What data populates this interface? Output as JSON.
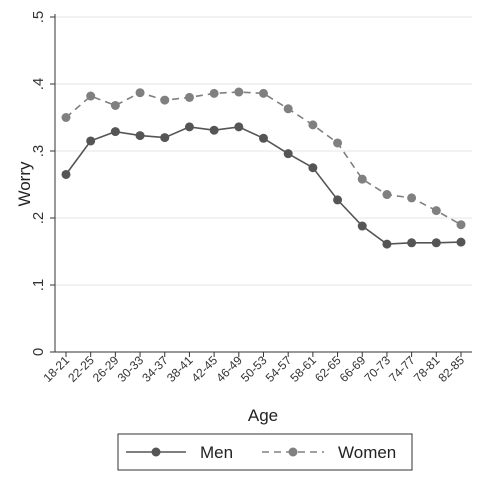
{
  "chart_data": {
    "type": "line",
    "xlabel": "Age",
    "ylabel": "Worry",
    "ylim": [
      0,
      0.5
    ],
    "yticks": [
      {
        "value": 0,
        "label": "0"
      },
      {
        "value": 0.1,
        "label": ".1"
      },
      {
        "value": 0.2,
        "label": ".2"
      },
      {
        "value": 0.3,
        "label": ".3"
      },
      {
        "value": 0.4,
        "label": ".4"
      },
      {
        "value": 0.5,
        "label": ".5"
      }
    ],
    "grid": true,
    "legend_position": "bottom",
    "categories": [
      "18-21",
      "22-25",
      "26-29",
      "30-33",
      "34-37",
      "38-41",
      "42-45",
      "46-49",
      "50-53",
      "54-57",
      "58-61",
      "62-65",
      "66-69",
      "70-73",
      "74-77",
      "78-81",
      "82-85"
    ],
    "series": [
      {
        "name": "Men",
        "line_style": "solid",
        "color": "#555555",
        "values": [
          0.265,
          0.315,
          0.329,
          0.323,
          0.32,
          0.336,
          0.331,
          0.336,
          0.319,
          0.296,
          0.275,
          0.227,
          0.188,
          0.161,
          0.163,
          0.163,
          0.164
        ]
      },
      {
        "name": "Women",
        "line_style": "dashed",
        "color": "#808080",
        "values": [
          0.35,
          0.382,
          0.368,
          0.387,
          0.376,
          0.38,
          0.386,
          0.388,
          0.386,
          0.363,
          0.339,
          0.312,
          0.258,
          0.235,
          0.23,
          0.211,
          0.19
        ]
      }
    ]
  }
}
